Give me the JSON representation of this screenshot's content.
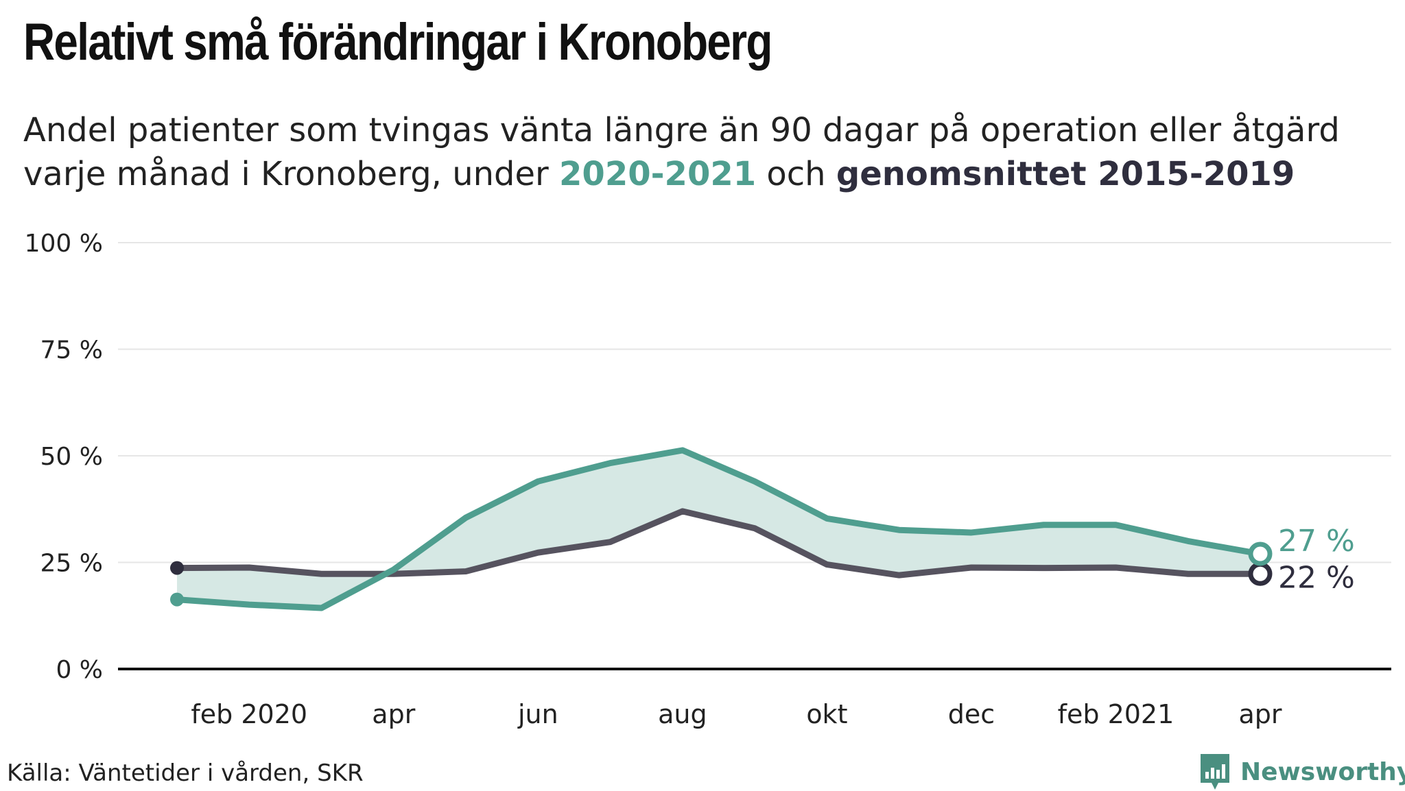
{
  "header": {
    "title": "Relativt små förändringar i Kronoberg",
    "subtitle_line1": "Andel patienter som tvingas vänta längre än 90 dagar på operation eller åtgärd",
    "subtitle_line2_prefix": "varje månad i Kronoberg, under ",
    "subtitle_series1": "2020-2021",
    "subtitle_mid": " och ",
    "subtitle_series2": "genomsnittet 2015-2019"
  },
  "footer": {
    "source": "Källa: Väntetider i vården, SKR",
    "brand": "Newsworthy"
  },
  "colors": {
    "series_2020": "#4f9e8f",
    "series_avg": "#56535f",
    "avg_marker": "#2f2e3e",
    "area_fill": "#d6e8e4",
    "grid": "#e6e6e6",
    "axis": "#111111"
  },
  "chart_data": {
    "type": "line",
    "x_tick_labels": [
      "feb 2020",
      "apr",
      "jun",
      "aug",
      "okt",
      "dec",
      "feb 2021",
      "apr"
    ],
    "x": [
      "2020-01",
      "2020-02",
      "2020-03",
      "2020-04",
      "2020-05",
      "2020-06",
      "2020-07",
      "2020-08",
      "2020-09",
      "2020-10",
      "2020-11",
      "2020-12",
      "2021-01",
      "2021-02",
      "2021-03",
      "2021-04"
    ],
    "series": [
      {
        "key": "2020-2021",
        "values": [
          16.3,
          15.1,
          14.3,
          23.3,
          35.5,
          44.0,
          48.3,
          51.3,
          44.0,
          35.3,
          32.6,
          32.0,
          33.8,
          33.8,
          30.0,
          27.0
        ]
      },
      {
        "key": "genomsnittet 2015-2019",
        "values": [
          23.7,
          23.8,
          22.3,
          22.3,
          22.9,
          27.3,
          29.8,
          37.0,
          33.0,
          24.5,
          22.0,
          23.8,
          23.7,
          23.8,
          22.3,
          22.3
        ]
      }
    ],
    "end_labels": [
      "27 %",
      "22 %"
    ],
    "y_ticks": [
      0,
      25,
      50,
      75,
      100
    ],
    "y_tick_labels": [
      "0 %",
      "25 %",
      "50 %",
      "75 %",
      "100 %"
    ],
    "ylim": [
      0,
      100
    ],
    "grid": true,
    "shaded_between_series": true
  }
}
